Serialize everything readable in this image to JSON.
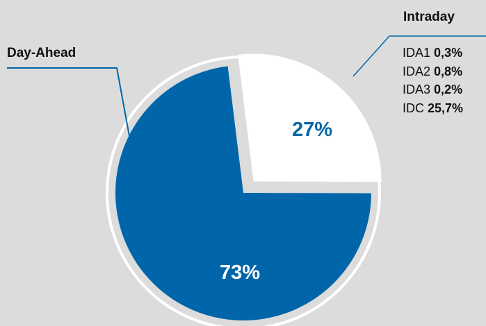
{
  "chart_data": {
    "type": "pie",
    "categories": [
      "Intraday",
      "Day-Ahead"
    ],
    "values": [
      27,
      73
    ],
    "data_labels": [
      "27%",
      "73%"
    ],
    "colors": {
      "Intraday": "#ffffff",
      "Day-Ahead": "#0066a9",
      "background": "#dcdcdc",
      "leader_line": "#0066a9",
      "text": "#111111"
    },
    "intraday_breakdown": [
      {
        "name": "IDA1",
        "value": "0,3%"
      },
      {
        "name": "IDA2",
        "value": "0,8%"
      },
      {
        "name": "IDA3",
        "value": "0,2%"
      },
      {
        "name": "IDC",
        "value": "25,7%"
      }
    ],
    "legend": "none"
  }
}
